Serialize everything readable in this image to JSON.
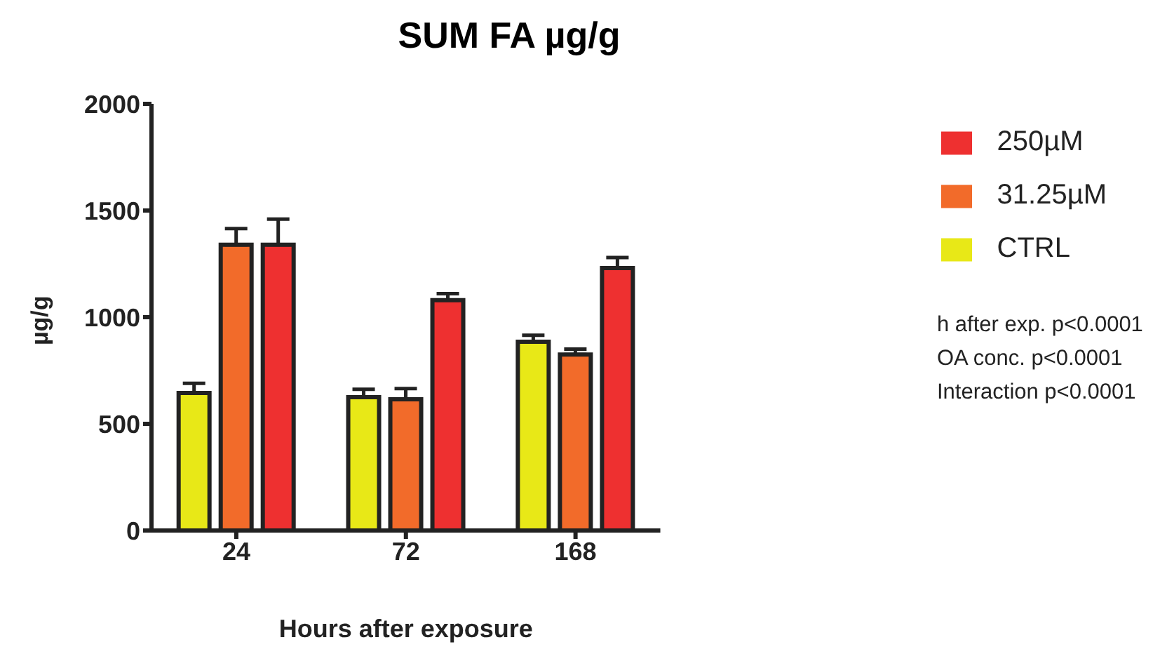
{
  "chart_data": {
    "type": "bar",
    "title": "SUM FA µg/g",
    "xlabel": "Hours after exposure",
    "ylabel": "µg/g",
    "categories": [
      "24",
      "72",
      "168"
    ],
    "series": [
      {
        "name": "CTRL",
        "color": "#e8e817",
        "values": [
          645,
          625,
          885
        ],
        "errors": [
          [
            645,
            690
          ],
          [
            625,
            662
          ],
          [
            885,
            915
          ]
        ]
      },
      {
        "name": "31.25µM",
        "color": "#f26b2a",
        "values": [
          1340,
          615,
          825
        ],
        "errors": [
          [
            1340,
            1415
          ],
          [
            615,
            665
          ],
          [
            825,
            850
          ]
        ]
      },
      {
        "name": "250µM",
        "color": "#ee3030",
        "values": [
          1340,
          1080,
          1230
        ],
        "errors": [
          [
            1340,
            1460
          ],
          [
            1080,
            1110
          ],
          [
            1230,
            1280
          ]
        ]
      }
    ],
    "ylim": [
      0,
      2000
    ],
    "yticks": [
      0,
      500,
      1000,
      1500,
      2000
    ],
    "grid": false,
    "legend": "top right",
    "annotations": [
      "h after exp. p<0.0001",
      "OA conc. p<0.0001",
      "Interaction p<0.0001"
    ]
  }
}
